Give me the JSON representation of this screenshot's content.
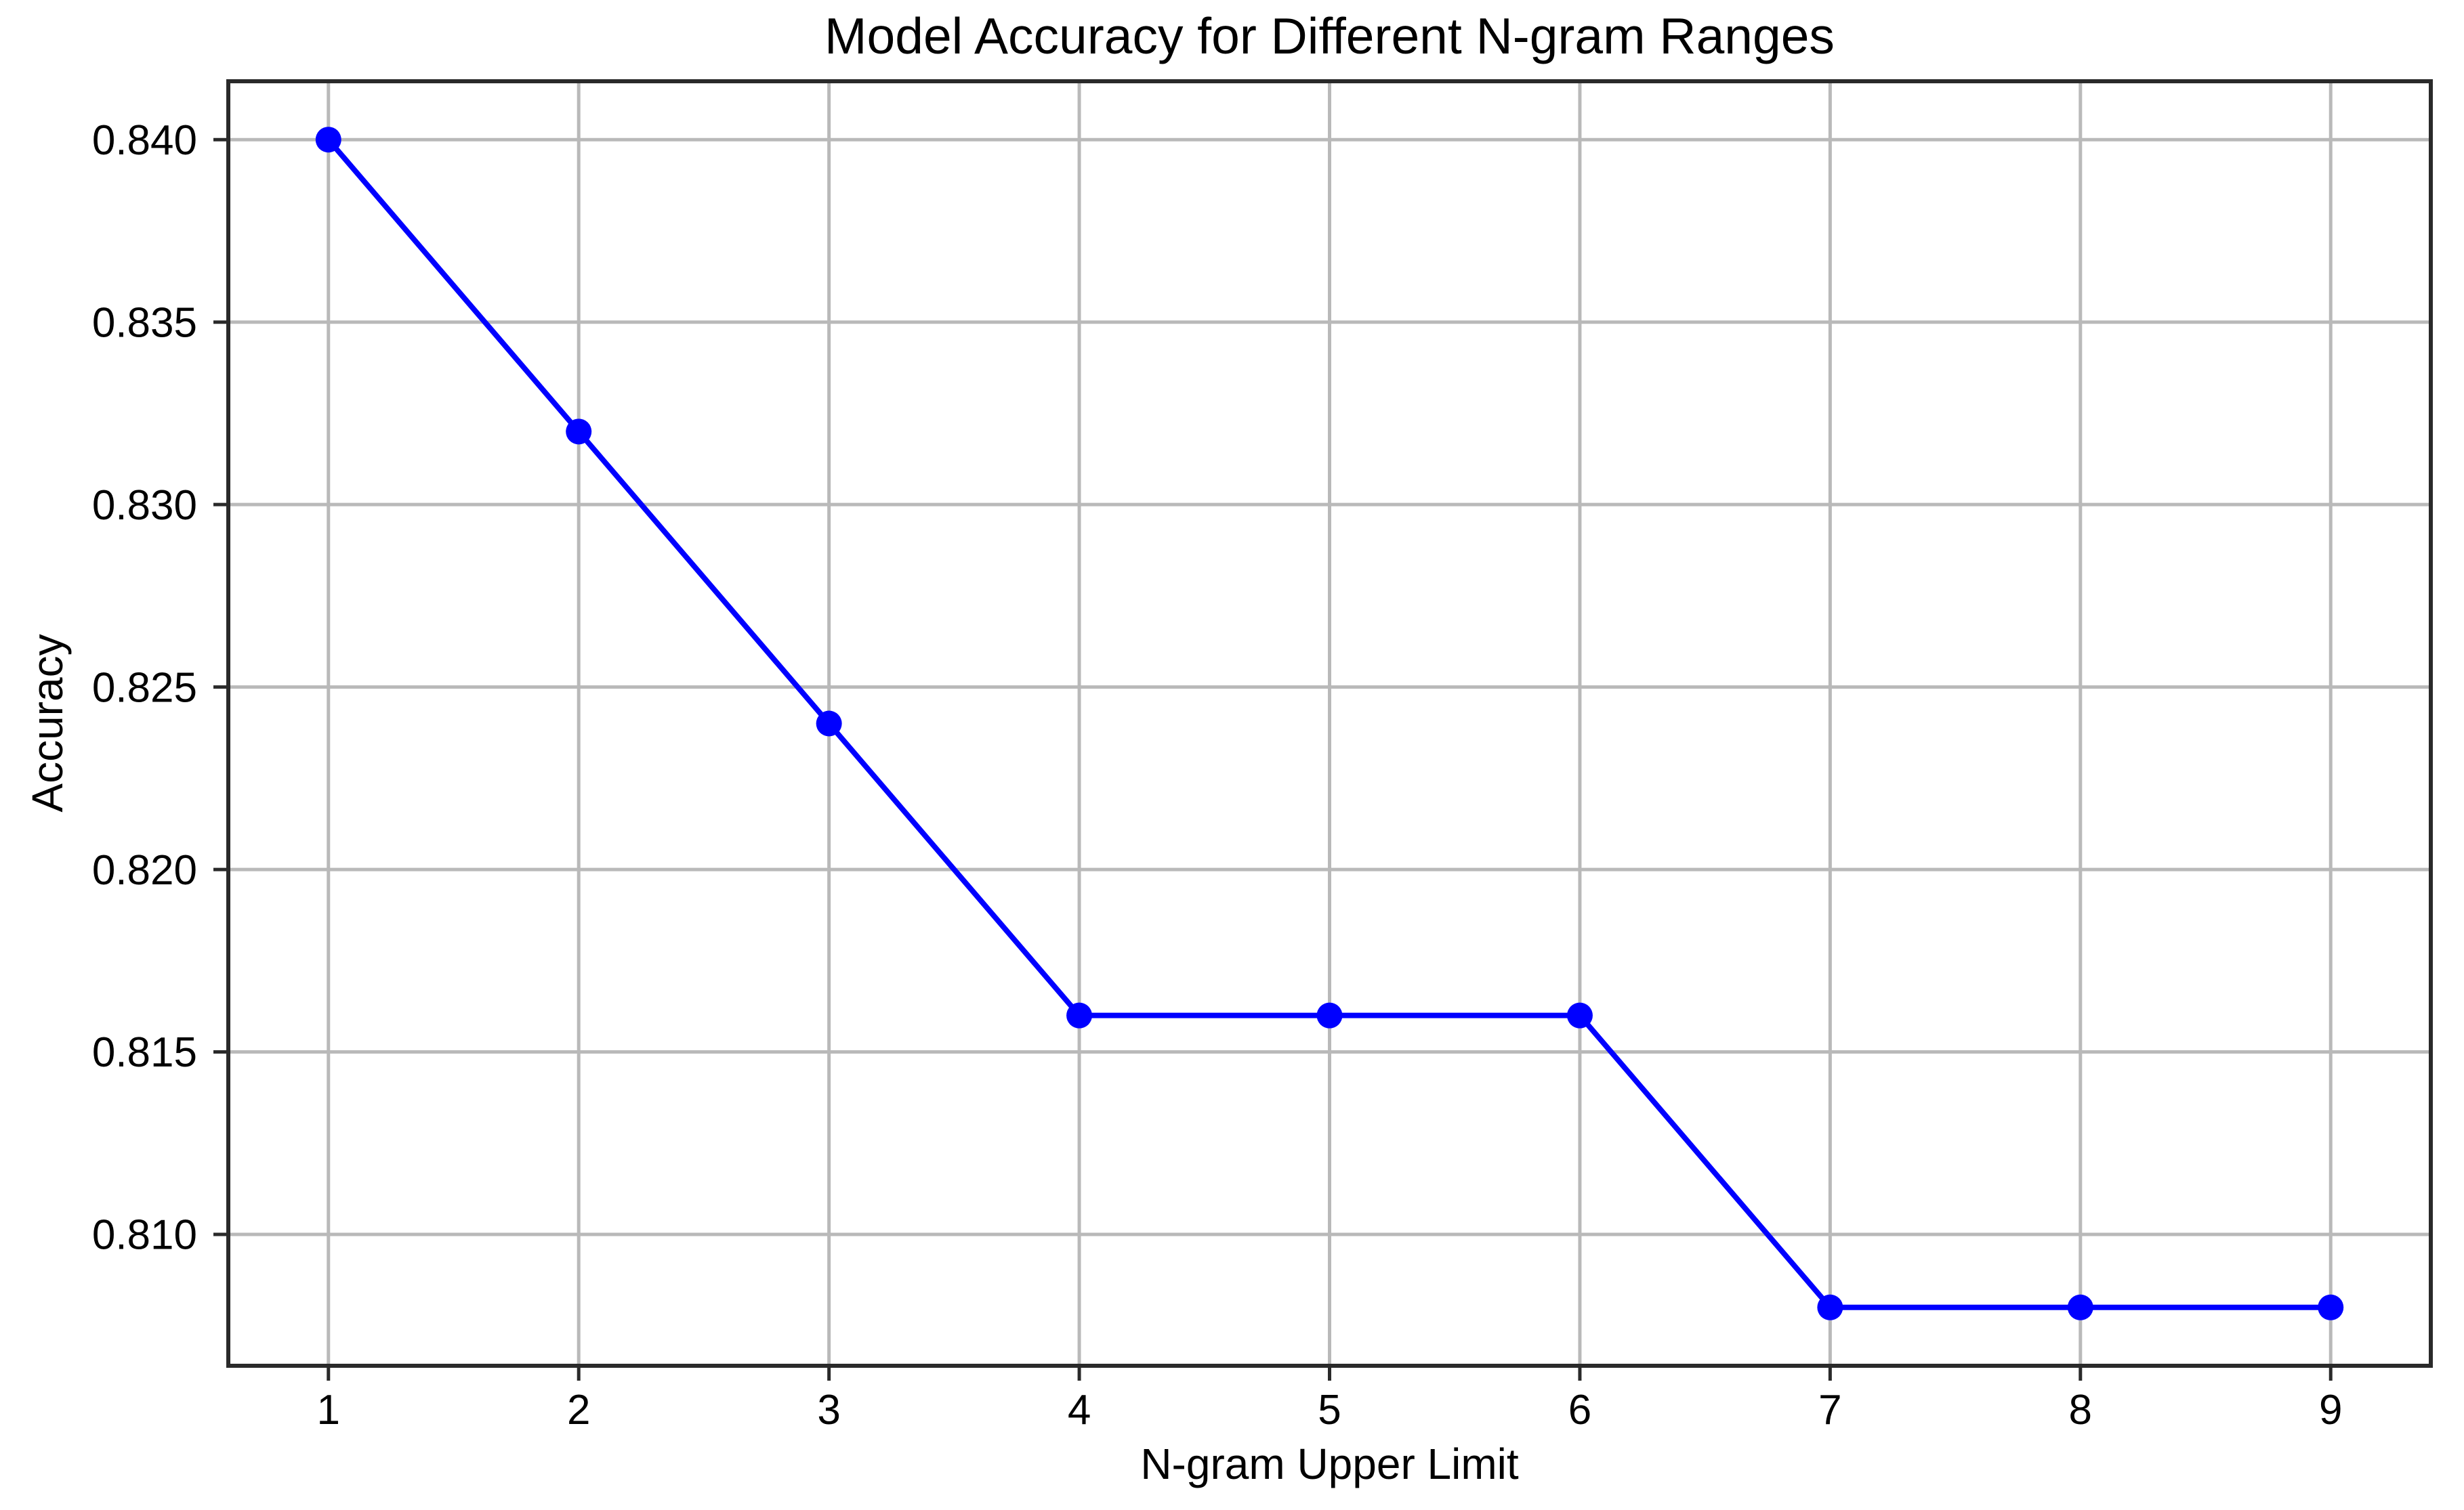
{
  "chart_data": {
    "type": "line",
    "title": "Model Accuracy for Different N-gram Ranges",
    "xlabel": "N-gram Upper Limit",
    "ylabel": "Accuracy",
    "x": [
      1,
      2,
      3,
      4,
      5,
      6,
      7,
      8,
      9
    ],
    "y": [
      0.84,
      0.832,
      0.824,
      0.816,
      0.816,
      0.816,
      0.808,
      0.808,
      0.808
    ],
    "xlim": [
      0.6,
      9.4
    ],
    "ylim": [
      0.8064,
      0.8416
    ],
    "xticks": {
      "values": [
        1,
        2,
        3,
        4,
        5,
        6,
        7,
        8,
        9
      ],
      "labels": [
        "1",
        "2",
        "3",
        "4",
        "5",
        "6",
        "7",
        "8",
        "9"
      ]
    },
    "yticks": {
      "values": [
        0.81,
        0.815,
        0.82,
        0.825,
        0.83,
        0.835,
        0.84
      ],
      "labels": [
        "0.810",
        "0.815",
        "0.820",
        "0.825",
        "0.830",
        "0.835",
        "0.840"
      ]
    },
    "grid": true,
    "legend": "none",
    "colors": {
      "line": "#0000ff",
      "marker": "#0000ff",
      "grid": "#b9b9b9",
      "spine": "#2a2a2a",
      "tick": "#2a2a2a",
      "text": "#000000",
      "background": "#ffffff"
    }
  }
}
